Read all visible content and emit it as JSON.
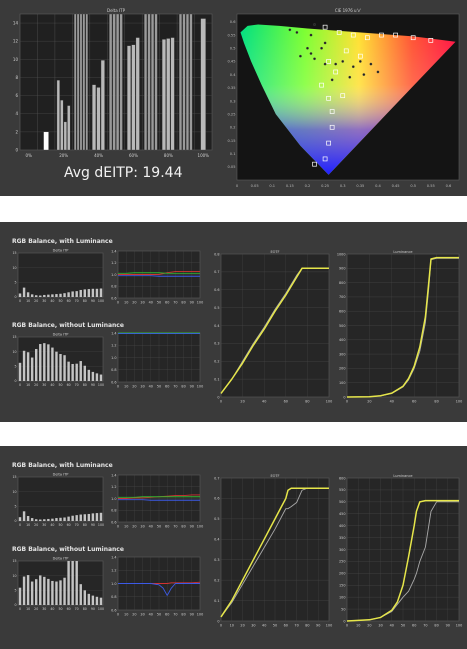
{
  "colors": {
    "panel_bg": "#3a3a3a",
    "plot_bg": "#202020",
    "plot_bg_light": "#262626",
    "grid": "#4a4a4a",
    "yellow": "#e6e64a",
    "gray_curve": "#a8a8a8",
    "red": "#d23232",
    "green": "#32b432",
    "blue": "#3c5ae6"
  },
  "panel1": {
    "avg_label": "Avg dEITP: 19.44"
  },
  "panel2": {
    "title_with": "RGB Balance, with Luminance",
    "title_without": "RGB Balance, without Luminance"
  },
  "panel3": {
    "title_with": "RGB Balance, with Luminance",
    "title_without": "RGB Balance, without Luminance"
  },
  "chart_data": [
    {
      "id": "p1-deitp-bars",
      "type": "bar",
      "title": "Delta ITP",
      "ylim": [
        0,
        15
      ],
      "yticks": [
        0,
        2,
        4,
        6,
        8,
        10,
        12,
        14
      ],
      "categories": [
        "0%",
        "10%",
        "20%",
        "30%",
        "40%",
        "50%",
        "60%",
        "70%",
        "80%",
        "90%",
        "100%"
      ],
      "xtick_labels": [
        "0%",
        "20%",
        "40%",
        "60%",
        "80%",
        "100%"
      ],
      "groups": [
        [],
        [
          2
        ],
        [
          7.7,
          5.5,
          3.1,
          4.9
        ],
        [
          15,
          15,
          15,
          15,
          15
        ],
        [
          7.2,
          6.9,
          9.9
        ],
        [
          15,
          15,
          15,
          15
        ],
        [
          11.5,
          11.6,
          12.4
        ],
        [
          15,
          15,
          15,
          15
        ],
        [
          12.2,
          12.3,
          12.4
        ],
        [
          15,
          15,
          15,
          15
        ],
        [
          14.5
        ]
      ]
    },
    {
      "id": "p1-cie-gamut",
      "type": "scatter",
      "title": "CIE 1976 u'v'",
      "xlim": [
        0,
        0.63
      ],
      "ylim": [
        0,
        0.63
      ],
      "xticks": [
        0,
        0.05,
        0.1,
        0.15,
        0.2,
        0.25,
        0.3,
        0.35,
        0.4,
        0.45,
        0.5,
        0.55,
        0.6
      ],
      "yticks": [
        0.05,
        0.1,
        0.15,
        0.2,
        0.25,
        0.3,
        0.35,
        0.4,
        0.45,
        0.5,
        0.55,
        0.6
      ],
      "locus_uv": [
        [
          0.26,
          0.02
        ],
        [
          0.18,
          0.13
        ],
        [
          0.11,
          0.25
        ],
        [
          0.07,
          0.36
        ],
        [
          0.04,
          0.45
        ],
        [
          0.02,
          0.52
        ],
        [
          0.01,
          0.56
        ],
        [
          0.03,
          0.585
        ],
        [
          0.06,
          0.59
        ],
        [
          0.12,
          0.585
        ],
        [
          0.2,
          0.575
        ],
        [
          0.3,
          0.565
        ],
        [
          0.4,
          0.555
        ],
        [
          0.5,
          0.545
        ],
        [
          0.56,
          0.535
        ],
        [
          0.62,
          0.525
        ]
      ],
      "targets": [
        [
          0.25,
          0.58
        ],
        [
          0.29,
          0.56
        ],
        [
          0.33,
          0.55
        ],
        [
          0.37,
          0.54
        ],
        [
          0.41,
          0.55
        ],
        [
          0.45,
          0.55
        ],
        [
          0.5,
          0.54
        ],
        [
          0.55,
          0.53
        ],
        [
          0.31,
          0.49
        ],
        [
          0.26,
          0.45
        ],
        [
          0.28,
          0.41
        ],
        [
          0.35,
          0.47
        ],
        [
          0.24,
          0.36
        ],
        [
          0.26,
          0.31
        ],
        [
          0.3,
          0.32
        ],
        [
          0.27,
          0.26
        ],
        [
          0.27,
          0.2
        ],
        [
          0.26,
          0.14
        ],
        [
          0.25,
          0.08
        ],
        [
          0.22,
          0.06
        ]
      ],
      "measured": [
        [
          0.22,
          0.59
        ],
        [
          0.15,
          0.57
        ],
        [
          0.17,
          0.56
        ],
        [
          0.21,
          0.55
        ],
        [
          0.2,
          0.5
        ],
        [
          0.21,
          0.48
        ],
        [
          0.18,
          0.47
        ],
        [
          0.22,
          0.46
        ],
        [
          0.25,
          0.44
        ],
        [
          0.28,
          0.44
        ],
        [
          0.3,
          0.45
        ],
        [
          0.33,
          0.43
        ],
        [
          0.35,
          0.45
        ],
        [
          0.38,
          0.44
        ],
        [
          0.4,
          0.41
        ],
        [
          0.36,
          0.4
        ],
        [
          0.32,
          0.39
        ],
        [
          0.27,
          0.38
        ],
        [
          0.25,
          0.52
        ],
        [
          0.24,
          0.5
        ]
      ]
    },
    {
      "id": "p2-bars-with",
      "type": "bar",
      "title": "Delta ITP",
      "ylim": [
        0,
        15
      ],
      "yticks": [
        0,
        5,
        10,
        15
      ],
      "xtick_labels": [
        "0",
        "5",
        "10",
        "15",
        "20",
        "25",
        "30",
        "35",
        "40",
        "45",
        "50",
        "55",
        "60",
        "65",
        "70",
        "75",
        "80",
        "85",
        "90",
        "95",
        "100"
      ],
      "values": [
        1.2,
        3.2,
        1.6,
        0.9,
        0.6,
        0.5,
        0.7,
        0.8,
        0.9,
        1.0,
        1.1,
        1.3,
        1.6,
        1.9,
        2.0,
        2.4,
        2.6,
        2.7,
        2.8,
        2.8,
        2.9
      ]
    },
    {
      "id": "p2-rgb-with",
      "type": "line",
      "ylim": [
        0.6,
        1.4
      ],
      "yticks": [
        "1.4",
        "1.2",
        "1.0",
        "0.8",
        "0.6"
      ],
      "xticks": [
        0,
        10,
        20,
        30,
        40,
        50,
        60,
        70,
        80,
        90,
        100
      ],
      "x": [
        0,
        10,
        20,
        30,
        40,
        50,
        60,
        70,
        80,
        90,
        100
      ],
      "series": [
        {
          "color_key": "red",
          "values": [
            1.0,
            1.0,
            1.0,
            1.0,
            1.0,
            1.0,
            1.03,
            1.05,
            1.05,
            1.05,
            1.05
          ]
        },
        {
          "color_key": "green",
          "values": [
            1.02,
            1.02,
            1.03,
            1.03,
            1.03,
            1.03,
            1.02,
            1.02,
            1.02,
            1.02,
            1.02
          ]
        },
        {
          "color_key": "blue",
          "values": [
            0.98,
            0.98,
            0.98,
            0.98,
            0.98,
            0.97,
            0.97,
            0.97,
            0.97,
            0.97,
            0.97
          ]
        }
      ]
    },
    {
      "id": "p2-eotf",
      "type": "line",
      "title": "EOTF",
      "xlim": [
        0,
        100
      ],
      "ylim": [
        0,
        0.8
      ],
      "xticks": [
        0,
        20,
        40,
        60,
        80,
        100
      ],
      "yticks": [
        "0",
        "0.1",
        "0.2",
        "0.3",
        "0.4",
        "0.5",
        "0.6",
        "0.7",
        "0.8"
      ],
      "x": [
        0,
        10,
        20,
        30,
        40,
        50,
        60,
        70,
        75,
        80,
        100
      ],
      "series": [
        {
          "color_key": "gray_curve",
          "values": [
            0.02,
            0.1,
            0.2,
            0.3,
            0.39,
            0.49,
            0.58,
            0.68,
            0.72,
            0.72,
            0.72
          ]
        },
        {
          "color_key": "yellow",
          "values": [
            0.02,
            0.1,
            0.19,
            0.29,
            0.38,
            0.48,
            0.57,
            0.67,
            0.72,
            0.72,
            0.72
          ]
        }
      ]
    },
    {
      "id": "p2-luminance",
      "type": "line",
      "title": "Luminance",
      "xlim": [
        0,
        100
      ],
      "ylim": [
        0,
        1000
      ],
      "xticks": [
        0,
        20,
        40,
        60,
        80,
        100
      ],
      "yticks": [
        "0",
        "100",
        "200",
        "300",
        "400",
        "500",
        "600",
        "700",
        "800",
        "900",
        "1000"
      ],
      "x": [
        0,
        20,
        30,
        40,
        50,
        55,
        60,
        65,
        70,
        73,
        75,
        80,
        100
      ],
      "series": [
        {
          "color_key": "gray_curve",
          "values": [
            0,
            2,
            8,
            25,
            70,
            120,
            200,
            320,
            520,
            760,
            960,
            970,
            970
          ]
        },
        {
          "color_key": "yellow",
          "values": [
            0,
            2,
            9,
            27,
            75,
            130,
            215,
            350,
            560,
            800,
            965,
            975,
            975
          ]
        }
      ]
    },
    {
      "id": "p2-bars-without",
      "type": "bar",
      "title": "Delta ITP",
      "ylim": [
        0,
        15
      ],
      "yticks": [
        0,
        5,
        10,
        15
      ],
      "xtick_labels": [
        "0",
        "5",
        "10",
        "15",
        "20",
        "25",
        "30",
        "35",
        "40",
        "45",
        "50",
        "55",
        "60",
        "65",
        "70",
        "75",
        "80",
        "85",
        "90",
        "95",
        "100"
      ],
      "values": [
        6.2,
        10.3,
        9.8,
        8.0,
        10.9,
        12.6,
        12.9,
        12.5,
        11.4,
        10.0,
        9.2,
        8.8,
        6.6,
        5.8,
        5.9,
        6.8,
        5.2,
        3.8,
        3.1,
        2.6,
        2.2
      ]
    },
    {
      "id": "p2-rgb-without",
      "type": "line",
      "ylim": [
        0.6,
        1.4
      ],
      "yticks": [
        "1.4",
        "1.2",
        "1.0",
        "0.8",
        "0.6"
      ],
      "xticks": [
        0,
        10,
        20,
        30,
        40,
        50,
        60,
        70,
        80,
        90,
        100
      ],
      "x": [
        0,
        10,
        20,
        30,
        40,
        50,
        60,
        70,
        80,
        90,
        100
      ],
      "series": [
        {
          "color_key": "green",
          "values": [
            1.4,
            1.4,
            1.4,
            1.4,
            1.4,
            1.4,
            1.4,
            1.4,
            1.4,
            1.4,
            1.4
          ]
        },
        {
          "color_key": "blue",
          "values": [
            1.39,
            1.39,
            1.39,
            1.39,
            1.39,
            1.39,
            1.39,
            1.39,
            1.39,
            1.39,
            1.39
          ]
        }
      ]
    },
    {
      "id": "p3-bars-with",
      "type": "bar",
      "title": "Delta ITP",
      "ylim": [
        0,
        15
      ],
      "yticks": [
        0,
        5,
        10,
        15
      ],
      "xtick_labels": [
        "0",
        "5",
        "10",
        "15",
        "20",
        "25",
        "30",
        "35",
        "40",
        "45",
        "50",
        "55",
        "60",
        "65",
        "70",
        "75",
        "80",
        "85",
        "90",
        "95",
        "100"
      ],
      "values": [
        1.3,
        3.3,
        1.7,
        1.0,
        0.6,
        0.5,
        0.6,
        0.7,
        0.8,
        1.0,
        1.1,
        1.2,
        1.5,
        1.8,
        2.0,
        2.2,
        2.3,
        2.4,
        2.6,
        2.7,
        2.8
      ]
    },
    {
      "id": "p3-rgb-with",
      "type": "line",
      "ylim": [
        0.6,
        1.4
      ],
      "yticks": [
        "1.4",
        "1.2",
        "1.0",
        "0.8",
        "0.6"
      ],
      "xticks": [
        0,
        10,
        20,
        30,
        40,
        50,
        60,
        70,
        80,
        90,
        100
      ],
      "x": [
        0,
        10,
        20,
        30,
        40,
        50,
        60,
        70,
        80,
        90,
        100
      ],
      "series": [
        {
          "color_key": "red",
          "values": [
            1.0,
            1.0,
            1.01,
            1.01,
            1.02,
            1.03,
            1.04,
            1.05,
            1.05,
            1.06,
            1.06
          ]
        },
        {
          "color_key": "green",
          "values": [
            1.02,
            1.02,
            1.02,
            1.03,
            1.03,
            1.03,
            1.03,
            1.03,
            1.03,
            1.03,
            1.03
          ]
        },
        {
          "color_key": "blue",
          "values": [
            0.98,
            0.98,
            0.98,
            0.98,
            0.97,
            0.97,
            0.97,
            0.97,
            0.97,
            0.97,
            0.97
          ]
        }
      ]
    },
    {
      "id": "p3-eotf",
      "type": "line",
      "title": "EOTF",
      "xlim": [
        0,
        100
      ],
      "ylim": [
        0,
        0.7
      ],
      "xticks": [
        0,
        10,
        20,
        30,
        40,
        50,
        60,
        70,
        80,
        90,
        100
      ],
      "yticks": [
        "0",
        "0.1",
        "0.2",
        "0.3",
        "0.4",
        "0.5",
        "0.6",
        "0.7"
      ],
      "x": [
        0,
        10,
        20,
        30,
        40,
        50,
        55,
        60,
        62,
        65,
        70,
        75,
        80,
        100
      ],
      "series": [
        {
          "color_key": "gray_curve",
          "values": [
            0.02,
            0.09,
            0.18,
            0.27,
            0.36,
            0.45,
            0.5,
            0.55,
            0.55,
            0.56,
            0.58,
            0.64,
            0.65,
            0.65
          ]
        },
        {
          "color_key": "yellow",
          "values": [
            0.02,
            0.1,
            0.2,
            0.3,
            0.4,
            0.5,
            0.55,
            0.6,
            0.64,
            0.65,
            0.65,
            0.65,
            0.65,
            0.65
          ]
        }
      ]
    },
    {
      "id": "p3-luminance",
      "type": "line",
      "title": "Luminance",
      "xlim": [
        0,
        100
      ],
      "ylim": [
        0,
        600
      ],
      "xticks": [
        0,
        10,
        20,
        30,
        40,
        50,
        60,
        70,
        80,
        90,
        100
      ],
      "yticks": [
        "0",
        "50",
        "100",
        "150",
        "200",
        "250",
        "300",
        "350",
        "400",
        "450",
        "500",
        "550",
        "600"
      ],
      "x": [
        0,
        20,
        30,
        40,
        45,
        50,
        55,
        60,
        62,
        65,
        70,
        75,
        80,
        100
      ],
      "series": [
        {
          "color_key": "gray_curve",
          "values": [
            0,
            5,
            15,
            40,
            70,
            100,
            125,
            175,
            200,
            250,
            310,
            460,
            500,
            500
          ]
        },
        {
          "color_key": "yellow",
          "values": [
            0,
            5,
            15,
            45,
            80,
            150,
            270,
            400,
            460,
            500,
            505,
            505,
            505,
            505
          ]
        }
      ]
    },
    {
      "id": "p3-bars-without",
      "type": "bar",
      "title": "Delta ITP",
      "ylim": [
        0,
        15
      ],
      "yticks": [
        0,
        5,
        10,
        15
      ],
      "xtick_labels": [
        "0",
        "5",
        "10",
        "15",
        "20",
        "25",
        "30",
        "35",
        "40",
        "45",
        "50",
        "55",
        "60",
        "65",
        "70",
        "75",
        "80",
        "85",
        "90",
        "95",
        "100"
      ],
      "values": [
        5.9,
        9.7,
        10.2,
        8.0,
        8.8,
        10.1,
        9.6,
        8.9,
        8.2,
        8.0,
        8.4,
        9.3,
        15,
        15,
        15,
        7.1,
        5.0,
        3.8,
        3.2,
        2.8,
        2.5
      ]
    },
    {
      "id": "p3-rgb-without",
      "type": "line",
      "ylim": [
        0.6,
        1.4
      ],
      "yticks": [
        "1.4",
        "1.2",
        "1.0",
        "0.8",
        "0.6"
      ],
      "xticks": [
        0,
        10,
        20,
        30,
        40,
        50,
        60,
        70,
        80,
        90,
        100
      ],
      "x": [
        0,
        10,
        20,
        30,
        40,
        50,
        55,
        60,
        65,
        70,
        80,
        90,
        100
      ],
      "series": [
        {
          "color_key": "red",
          "values": [
            1.0,
            1.0,
            1.0,
            1.0,
            1.0,
            1.0,
            1.0,
            1.0,
            1.01,
            1.01,
            1.01,
            1.01,
            1.02
          ]
        },
        {
          "color_key": "blue",
          "values": [
            1.0,
            1.0,
            1.0,
            1.0,
            1.0,
            0.98,
            0.93,
            0.82,
            0.93,
            1.0,
            1.0,
            1.0,
            1.0
          ]
        }
      ]
    }
  ]
}
